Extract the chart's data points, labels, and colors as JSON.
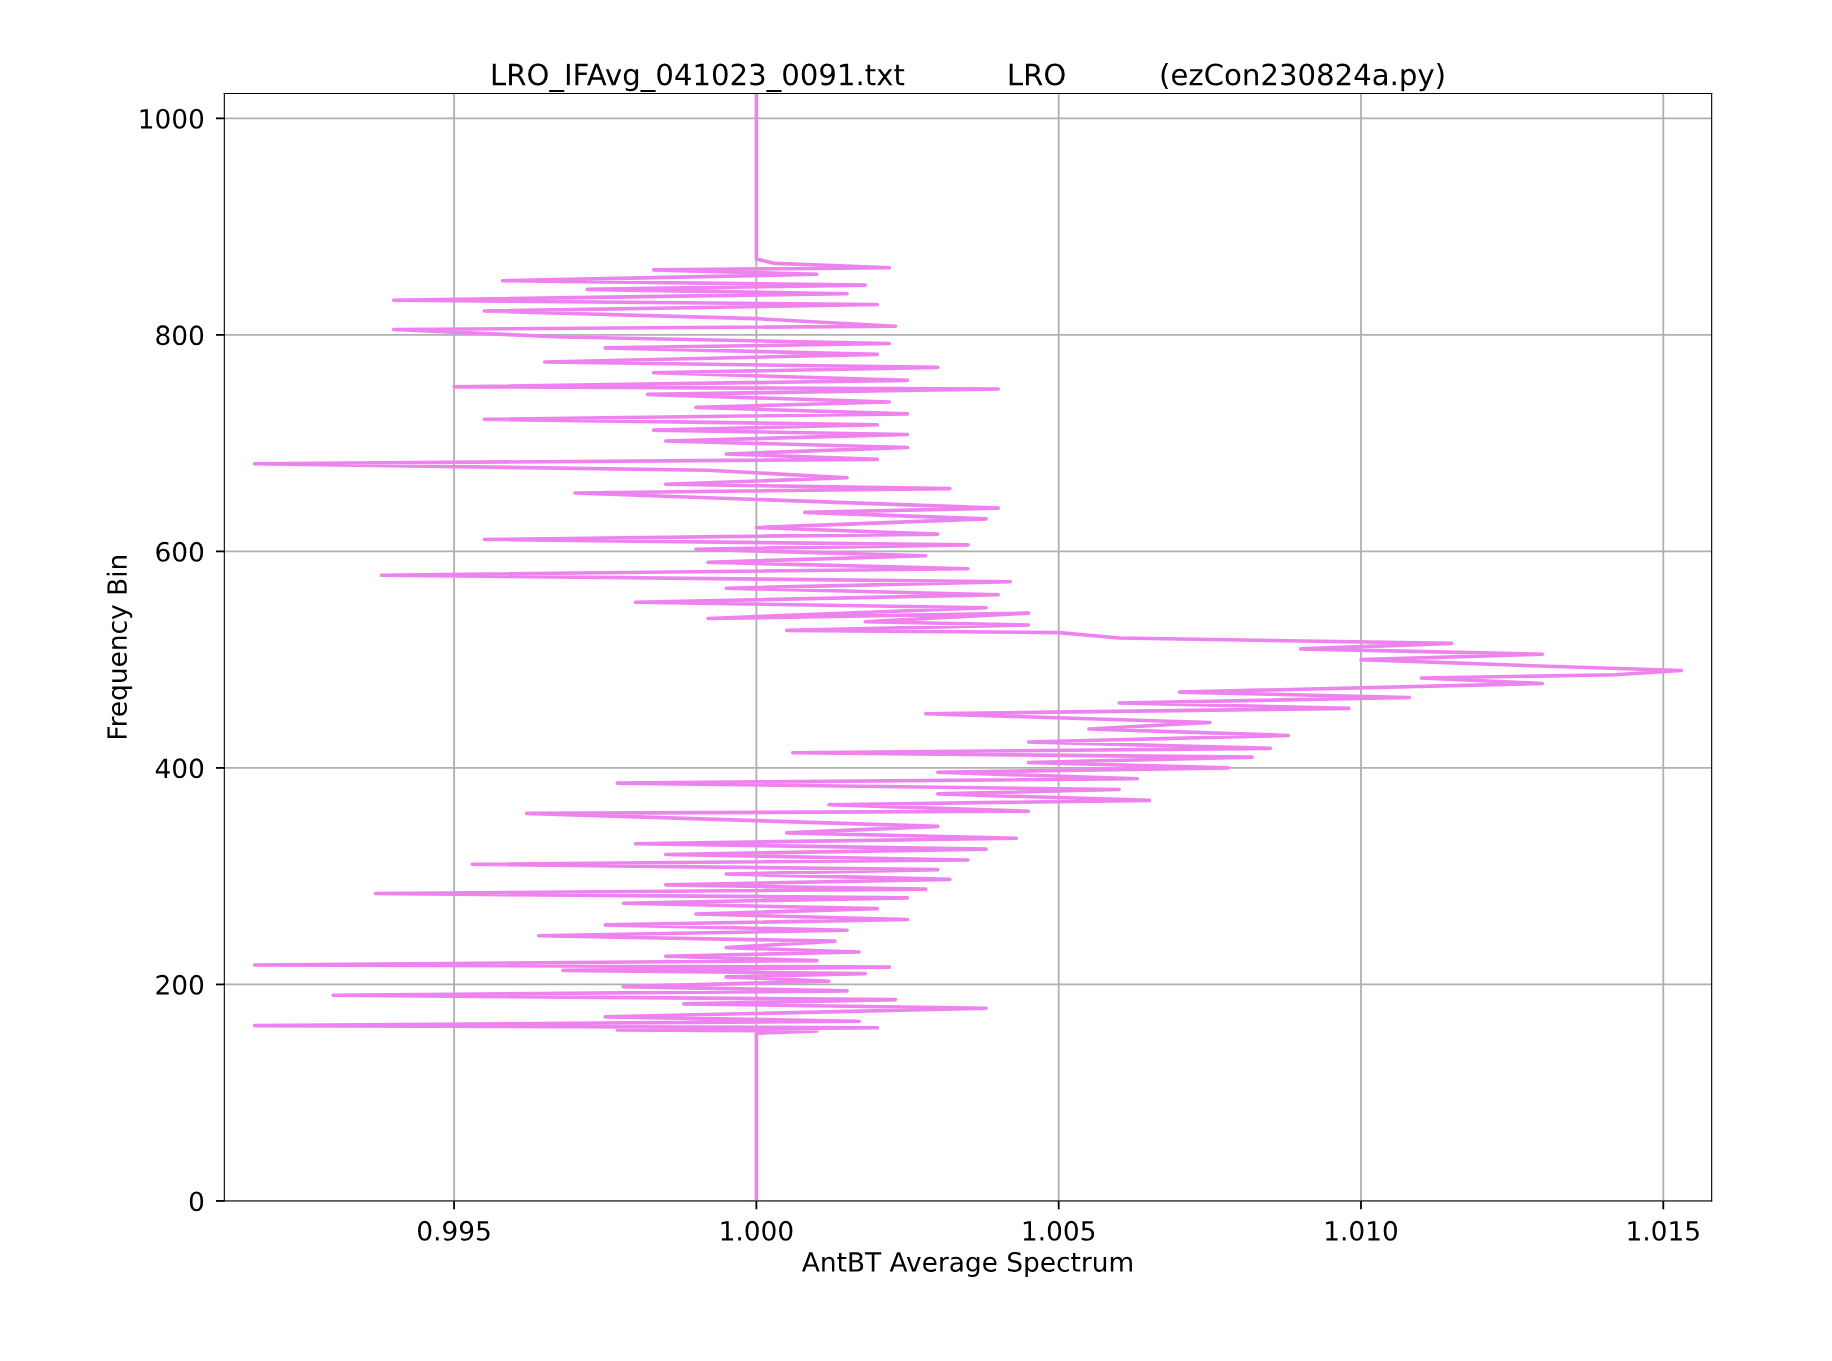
{
  "chart_data": {
    "type": "line",
    "title": "LRO_IFAvg_041023_0091.txt           LRO          (ezCon230824a.py)",
    "xlabel": "AntBT Average Spectrum",
    "ylabel": "Frequency Bin",
    "xlim": [
      0.9912,
      1.0158
    ],
    "ylim": [
      0,
      1023
    ],
    "xticks": [
      {
        "value": 0.995,
        "label": "0.995"
      },
      {
        "value": 1.0,
        "label": "1.000"
      },
      {
        "value": 1.005,
        "label": "1.005"
      },
      {
        "value": 1.01,
        "label": "1.010"
      },
      {
        "value": 1.015,
        "label": "1.015"
      }
    ],
    "yticks": [
      0,
      200,
      400,
      600,
      800,
      1000
    ],
    "grid": true,
    "line_style": "solid",
    "series": [
      {
        "color": "#ee82ee",
        "x": [
          1.0,
          1.0,
          1.001,
          0.9977,
          1.002,
          0.9917,
          1.0017,
          0.9975,
          1.0038,
          0.9988,
          1.0023,
          0.993,
          1.0015,
          0.9978,
          1.0012,
          0.9995,
          1.0018,
          0.9968,
          1.0022,
          0.9917,
          1.001,
          0.9985,
          1.0017,
          0.9995,
          1.0013,
          0.9964,
          1.0015,
          0.9975,
          1.0025,
          0.999,
          1.002,
          0.9978,
          1.0025,
          0.9937,
          1.0028,
          0.9985,
          1.0032,
          0.9995,
          1.003,
          0.9953,
          1.0035,
          0.9985,
          1.0038,
          0.998,
          1.0043,
          1.0005,
          1.003,
          0.9962,
          1.0045,
          1.0012,
          1.0065,
          1.003,
          1.006,
          0.9977,
          1.0063,
          1.003,
          1.0078,
          1.0045,
          1.0082,
          1.0006,
          1.0085,
          1.0045,
          1.0088,
          1.0055,
          1.0075,
          1.0028,
          1.0098,
          1.006,
          1.0108,
          1.007,
          1.013,
          1.011,
          1.0142,
          1.0153,
          1.0125,
          1.01,
          1.013,
          1.009,
          1.0115,
          1.006,
          1.005,
          1.0005,
          1.0045,
          1.0018,
          1.0045,
          0.9992,
          1.0038,
          0.998,
          1.004,
          0.9995,
          1.0042,
          0.9938,
          1.0035,
          0.9992,
          1.0028,
          0.999,
          1.0035,
          0.9955,
          1.003,
          1.0,
          1.0038,
          1.0008,
          1.004,
          0.997,
          1.0032,
          0.9985,
          1.0015,
          0.9992,
          0.9917,
          1.002,
          0.9995,
          1.0025,
          0.9985,
          1.0025,
          0.9983,
          1.002,
          0.9955,
          1.0025,
          0.999,
          1.0022,
          0.9982,
          1.004,
          0.995,
          1.0025,
          0.9983,
          1.003,
          0.9965,
          1.002,
          0.9975,
          1.0022,
          0.9968,
          0.994,
          1.0023,
          1.0,
          0.9955,
          1.002,
          0.994,
          1.0015,
          0.9972,
          1.0018,
          0.9958,
          1.001,
          0.9983,
          1.0022,
          1.0003,
          1.0,
          1.0
        ],
        "values": [
          0,
          155,
          157,
          158,
          160,
          162,
          166,
          170,
          178,
          182,
          186,
          190,
          194,
          198,
          203,
          207,
          210,
          213,
          216,
          218,
          222,
          226,
          230,
          234,
          240,
          245,
          250,
          255,
          260,
          265,
          270,
          275,
          280,
          284,
          288,
          292,
          297,
          302,
          306,
          311,
          315,
          320,
          325,
          330,
          335,
          340,
          346,
          358,
          360,
          366,
          370,
          376,
          380,
          386,
          390,
          396,
          400,
          405,
          410,
          414,
          418,
          424,
          430,
          436,
          442,
          450,
          455,
          460,
          465,
          470,
          478,
          483,
          486,
          490,
          495,
          500,
          505,
          510,
          515,
          520,
          525,
          527,
          532,
          535,
          543,
          538,
          548,
          553,
          560,
          566,
          572,
          578,
          584,
          590,
          596,
          602,
          606,
          611,
          616,
          622,
          630,
          636,
          640,
          654,
          658,
          662,
          668,
          675,
          681,
          685,
          690,
          696,
          702,
          708,
          712,
          717,
          722,
          727,
          733,
          738,
          745,
          750,
          752,
          758,
          765,
          770,
          775,
          782,
          788,
          792,
          798,
          805,
          808,
          815,
          822,
          828,
          832,
          838,
          842,
          846,
          850,
          856,
          860,
          862,
          866,
          870,
          1023
        ]
      }
    ]
  }
}
